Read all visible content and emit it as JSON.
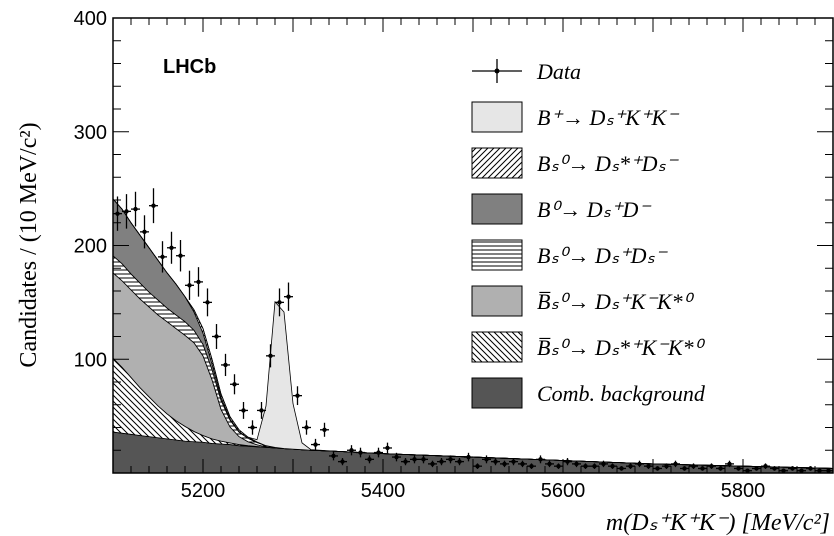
{
  "chart_data": {
    "type": "area",
    "experiment_label": "LHCb",
    "ylabel": "Candidates / (10 MeV/c²)",
    "xlabel": "m(Dₛ⁺K⁺K⁻) [MeV/c²]",
    "xlim": [
      5100,
      5900
    ],
    "ylim": [
      0,
      400
    ],
    "xticks": [
      5200,
      5400,
      5600,
      5800
    ],
    "yticks": [
      100,
      200,
      300,
      400
    ],
    "legend_position": "top-right",
    "x": [
      5100,
      5110,
      5120,
      5130,
      5140,
      5150,
      5160,
      5170,
      5180,
      5190,
      5200,
      5210,
      5220,
      5230,
      5240,
      5250,
      5260,
      5270,
      5280,
      5290,
      5300,
      5310,
      5320,
      5350,
      5400,
      5500,
      5600,
      5700,
      5800,
      5900
    ],
    "stack_order_bottom_to_top": [
      "Comb. background",
      "B̅s⁰ → Ds*⁺ K⁻ K*⁰",
      "B̅s⁰ → Ds⁺ K⁻ K*⁰",
      "Bs⁰ → Ds⁺ Ds⁻",
      "B⁰ → Ds⁺ D⁻",
      "Bs⁰ → Ds*⁺ Ds⁻",
      "B⁺ → Ds⁺ K⁺ K⁻"
    ],
    "series": [
      {
        "name": "Comb. background",
        "color": "#555555",
        "pattern": "solid",
        "values": [
          36,
          35,
          34,
          33,
          32,
          31,
          30,
          29,
          28,
          27.5,
          27,
          26,
          25.5,
          25,
          24,
          23.5,
          23,
          22.5,
          22,
          21.5,
          21,
          20.5,
          20,
          19,
          17,
          14,
          11,
          8,
          6,
          4
        ]
      },
      {
        "name": "B̅s⁰ → Ds*⁺ K⁻ K*⁰",
        "color": "#000000",
        "pattern": "hatch-down",
        "values": [
          65,
          58,
          50,
          42,
          35,
          28,
          22,
          17,
          13,
          9,
          6,
          4,
          2.5,
          1.5,
          1,
          0.5,
          0.3,
          0,
          0,
          0,
          0,
          0,
          0,
          0,
          0,
          0,
          0,
          0,
          0,
          0
        ]
      },
      {
        "name": "B̅s⁰ → Ds⁺ K⁻ K*⁰",
        "color": "#b0b0b0",
        "pattern": "solid",
        "values": [
          75,
          76,
          77,
          78,
          79,
          80,
          81,
          81,
          80,
          78,
          70,
          52,
          28,
          14,
          7,
          3.5,
          1.5,
          0.5,
          0,
          0,
          0,
          0,
          0,
          0,
          0,
          0,
          0,
          0,
          0,
          0
        ]
      },
      {
        "name": "Bs⁰ → Ds⁺ Ds⁻",
        "color": "#000000",
        "pattern": "hatch-horizontal",
        "values": [
          15,
          15,
          14,
          14,
          13,
          13,
          12,
          12,
          12,
          11,
          10,
          9,
          8,
          6,
          4,
          3,
          2,
          1,
          0.5,
          0,
          0,
          0,
          0,
          0,
          0,
          0,
          0,
          0,
          0,
          0
        ]
      },
      {
        "name": "B⁰ → Ds⁺ D⁻",
        "color": "#808080",
        "pattern": "solid",
        "values": [
          50,
          48,
          45,
          42,
          39,
          35,
          31,
          27,
          22,
          16,
          10,
          5,
          2.5,
          1,
          0.5,
          0,
          0,
          0,
          0,
          0,
          0,
          0,
          0,
          0,
          0,
          0,
          0,
          0,
          0,
          0
        ]
      },
      {
        "name": "Bs⁰ → Ds*⁺ Ds⁻",
        "color": "#000000",
        "pattern": "hatch-up",
        "values": [
          0,
          0,
          0,
          0,
          0,
          0,
          0,
          0,
          0,
          2,
          4,
          4,
          3,
          2,
          1.5,
          1,
          0.5,
          0,
          0,
          0,
          0,
          0,
          0,
          0,
          0,
          0,
          0,
          0,
          0,
          0
        ]
      },
      {
        "name": "B⁺ → Ds⁺ K⁺ K⁻",
        "color": "#e6e6e6",
        "pattern": "solid",
        "values": [
          0,
          0,
          0,
          0,
          0,
          0,
          0,
          0,
          0,
          0,
          0,
          0,
          0,
          0,
          0,
          0,
          2,
          35,
          128,
          120,
          40,
          6,
          0.5,
          0,
          0,
          0,
          0,
          0,
          0,
          0
        ]
      }
    ],
    "data_points": {
      "name": "Data",
      "x": [
        5105,
        5115,
        5125,
        5135,
        5145,
        5155,
        5165,
        5175,
        5185,
        5195,
        5205,
        5215,
        5225,
        5235,
        5245,
        5255,
        5265,
        5275,
        5285,
        5295,
        5305,
        5315,
        5325,
        5335,
        5345,
        5355,
        5365,
        5375,
        5385,
        5395,
        5405,
        5415,
        5425,
        5435,
        5445,
        5455,
        5465,
        5475,
        5485,
        5495,
        5505,
        5515,
        5525,
        5535,
        5545,
        5555,
        5565,
        5575,
        5585,
        5595,
        5605,
        5615,
        5625,
        5635,
        5645,
        5655,
        5665,
        5675,
        5685,
        5695,
        5705,
        5715,
        5725,
        5735,
        5745,
        5755,
        5765,
        5775,
        5785,
        5795,
        5805,
        5815,
        5825,
        5835,
        5845,
        5855,
        5865,
        5875,
        5885,
        5895
      ],
      "y": [
        228,
        230,
        232,
        212,
        235,
        190,
        198,
        191,
        165,
        168,
        150,
        120,
        95,
        78,
        55,
        40,
        55,
        103,
        150,
        155,
        68,
        40,
        25,
        38,
        15,
        10,
        20,
        18,
        12,
        18,
        22,
        14,
        10,
        12,
        12,
        8,
        10,
        12,
        10,
        14,
        6,
        12,
        10,
        8,
        10,
        8,
        6,
        12,
        8,
        6,
        10,
        8,
        6,
        6,
        8,
        6,
        4,
        6,
        8,
        6,
        4,
        6,
        8,
        4,
        6,
        4,
        6,
        4,
        8,
        4,
        2,
        4,
        6,
        4,
        2,
        4,
        2,
        4,
        2,
        2
      ]
    },
    "legend": [
      {
        "label": "Data",
        "kind": "data"
      },
      {
        "label": "B⁺→ Dₛ⁺K⁺K⁻",
        "kind": "fill",
        "color": "#e6e6e6",
        "pattern": "solid"
      },
      {
        "label": "Bₛ⁰→ Dₛ*⁺Dₛ⁻",
        "kind": "fill",
        "color": "#ffffff",
        "pattern": "hatch-up"
      },
      {
        "label": "B⁰→ Dₛ⁺D⁻",
        "kind": "fill",
        "color": "#808080",
        "pattern": "solid"
      },
      {
        "label": "Bₛ⁰→ Dₛ⁺Dₛ⁻",
        "kind": "fill",
        "color": "#ffffff",
        "pattern": "hatch-horizontal"
      },
      {
        "label": "B̅ₛ⁰→ Dₛ⁺K⁻K*⁰",
        "kind": "fill",
        "color": "#b0b0b0",
        "pattern": "solid"
      },
      {
        "label": "B̅ₛ⁰→ Dₛ*⁺K⁻K*⁰",
        "kind": "fill",
        "color": "#ffffff",
        "pattern": "hatch-down"
      },
      {
        "label": "Comb. background",
        "kind": "fill",
        "color": "#555555",
        "pattern": "solid"
      }
    ]
  }
}
